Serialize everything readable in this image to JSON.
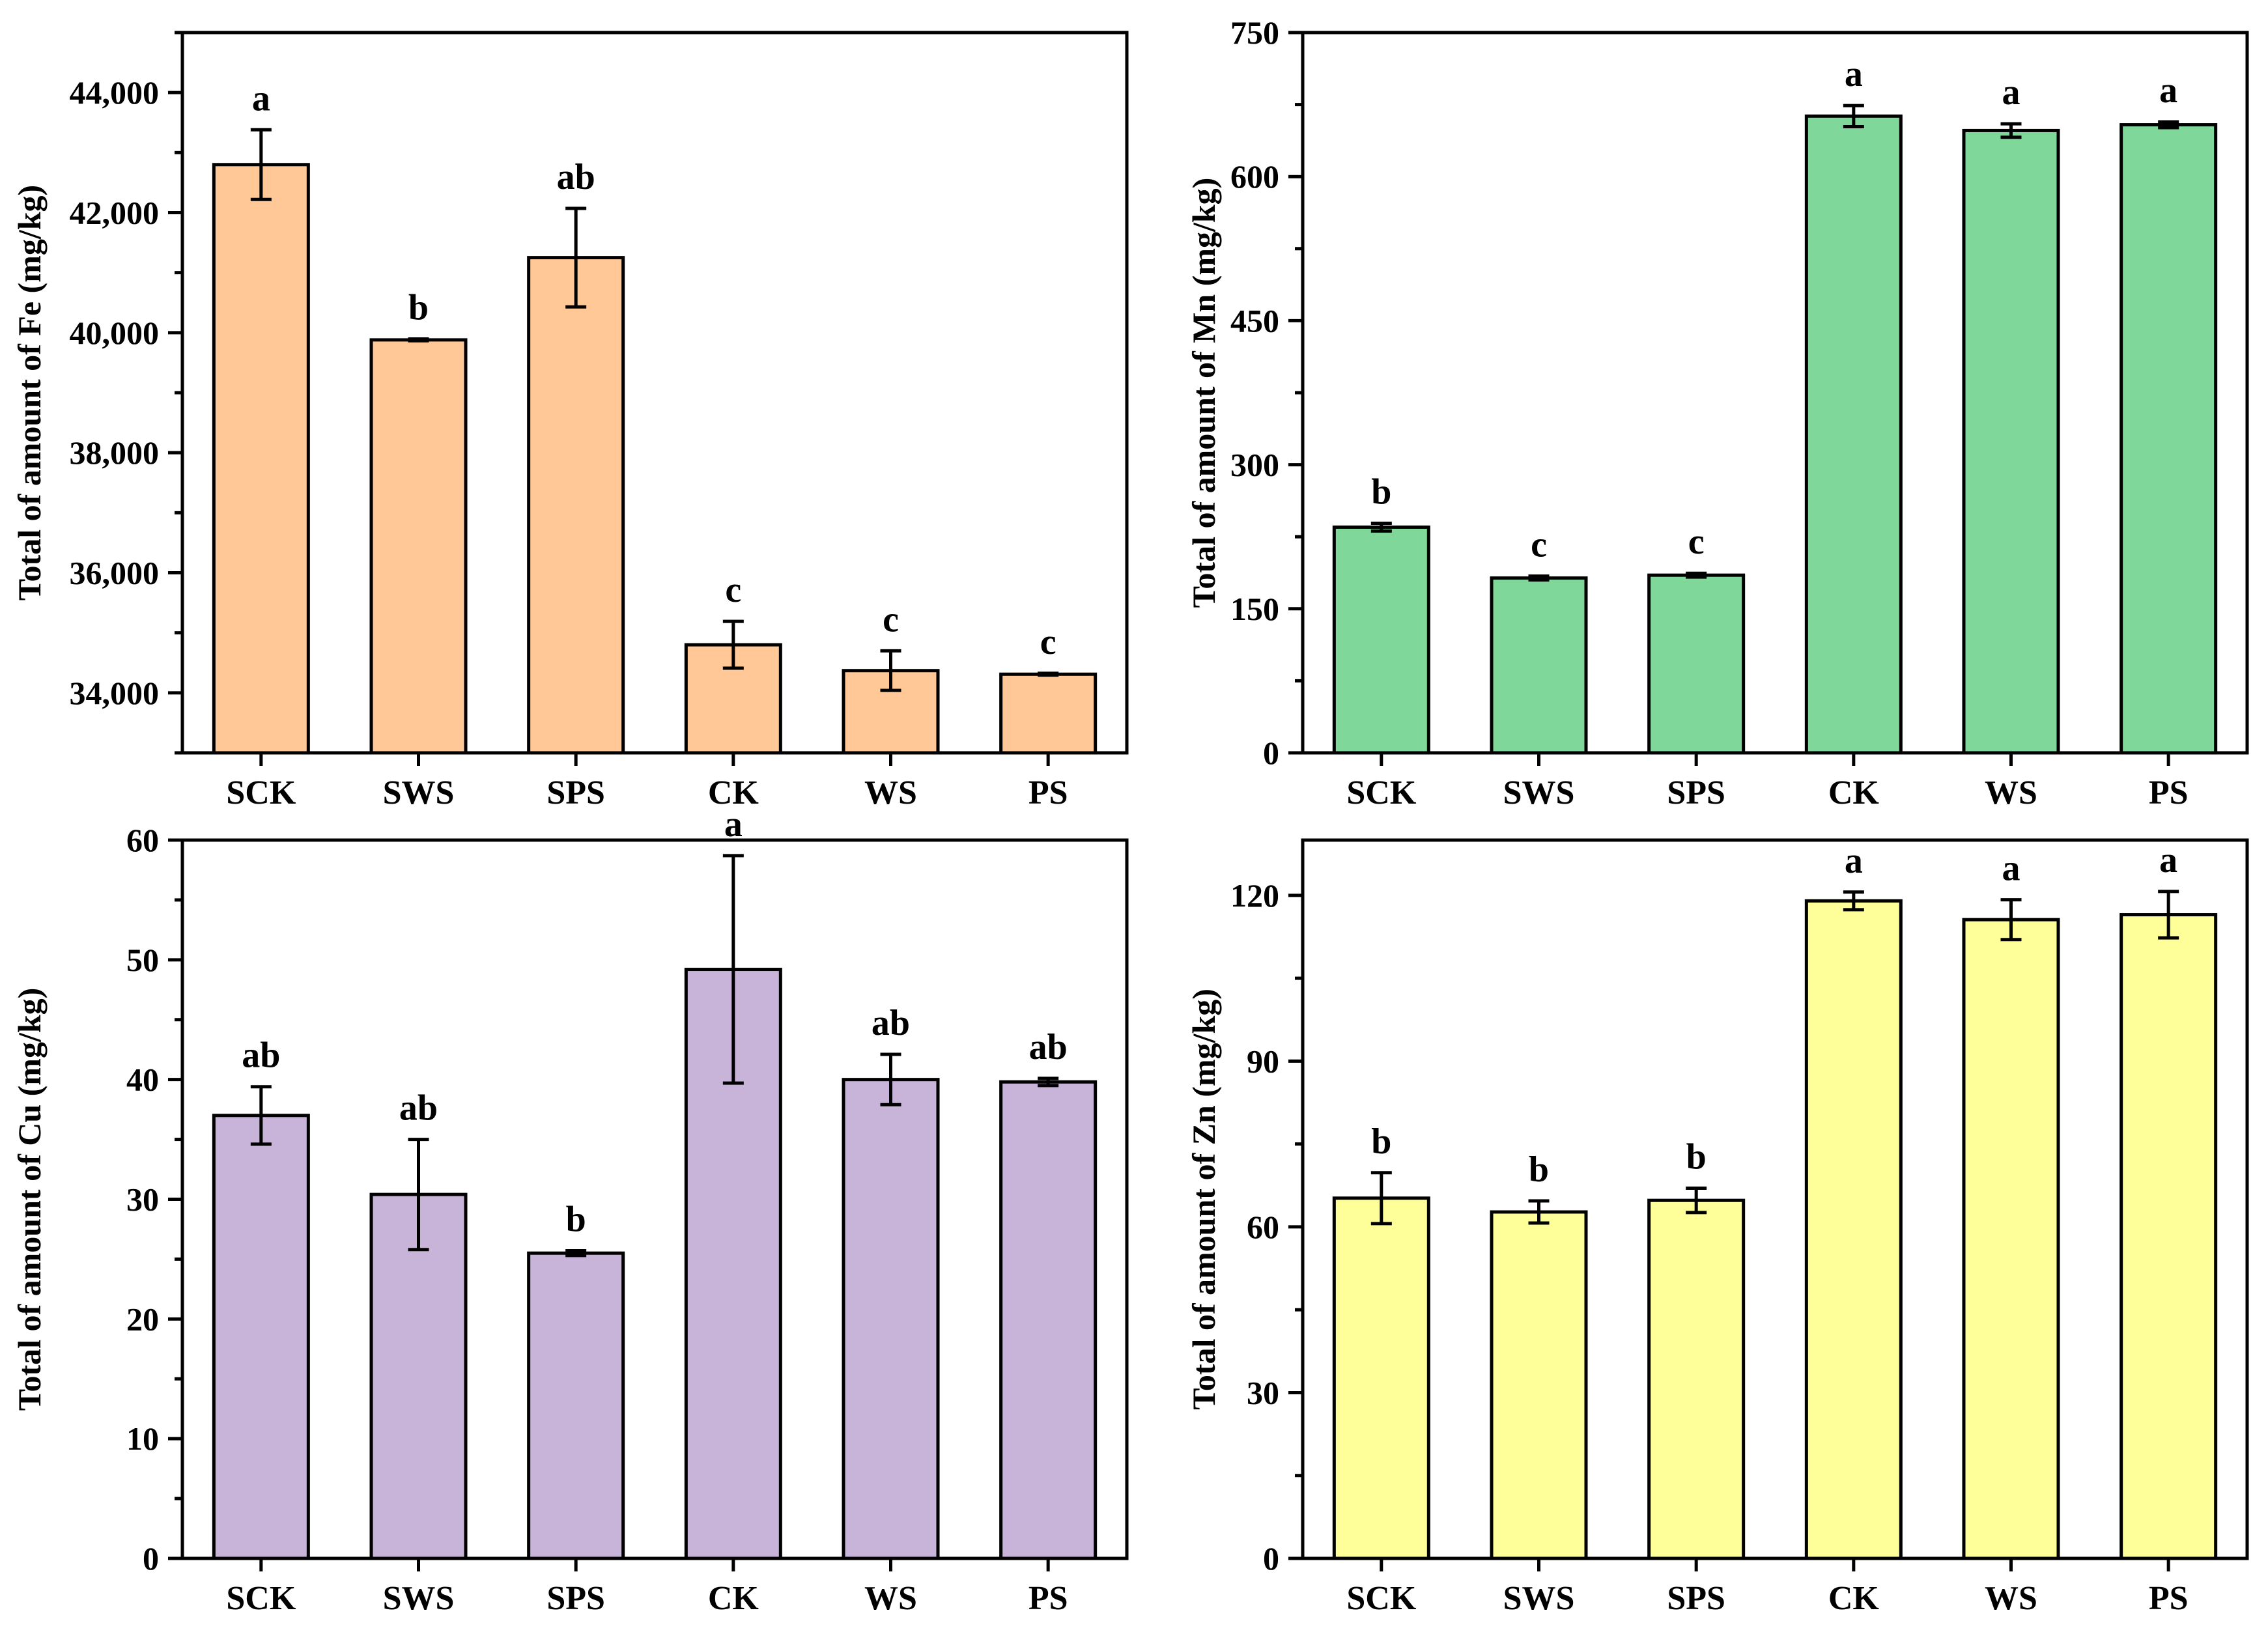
{
  "chart_data": [
    {
      "type": "bar",
      "title": "",
      "xlabel": "",
      "ylabel": "Total of amount of Fe (mg/kg)",
      "categories": [
        "SCK",
        "SWS",
        "SPS",
        "CK",
        "WS",
        "PS"
      ],
      "values": [
        42800,
        39880,
        41250,
        34800,
        34370,
        34310
      ],
      "errors": [
        580,
        15,
        820,
        390,
        330,
        15
      ],
      "significance": [
        "a",
        "b",
        "ab",
        "c",
        "c",
        "c"
      ],
      "ylim": [
        33000,
        45000
      ],
      "yticks": [
        34000,
        36000,
        38000,
        40000,
        42000,
        44000
      ],
      "ytick_labels": [
        "34,000",
        "36,000",
        "38,000",
        "40,000",
        "42,000",
        "44,000"
      ],
      "color": "#FFC896"
    },
    {
      "type": "bar",
      "title": "",
      "xlabel": "",
      "ylabel": "Total of amount of Mn (mg/kg)",
      "categories": [
        "SCK",
        "SWS",
        "SPS",
        "CK",
        "WS",
        "PS"
      ],
      "values": [
        235,
        182,
        185,
        663,
        648,
        654
      ],
      "errors": [
        4,
        2,
        2,
        11,
        7,
        3
      ],
      "significance": [
        "b",
        "c",
        "c",
        "a",
        "a",
        "a"
      ],
      "ylim": [
        0,
        750
      ],
      "yticks": [
        0,
        150,
        300,
        450,
        600,
        750
      ],
      "ytick_labels": [
        "0",
        "150",
        "300",
        "450",
        "600",
        "750"
      ],
      "color": "#7FD89A"
    },
    {
      "type": "bar",
      "title": "",
      "xlabel": "",
      "ylabel": "Total of amount of Cu (mg/kg)",
      "categories": [
        "SCK",
        "SWS",
        "SPS",
        "CK",
        "WS",
        "PS"
      ],
      "values": [
        37.0,
        30.4,
        25.5,
        49.2,
        40.0,
        39.8
      ],
      "errors": [
        2.4,
        4.6,
        0.2,
        9.5,
        2.1,
        0.3
      ],
      "significance": [
        "ab",
        "ab",
        "b",
        "a",
        "ab",
        "ab"
      ],
      "ylim": [
        0,
        60
      ],
      "yticks": [
        0,
        10,
        20,
        30,
        40,
        50,
        60
      ],
      "ytick_labels": [
        "0",
        "10",
        "20",
        "30",
        "40",
        "50",
        "60"
      ],
      "color": "#C8B4D8"
    },
    {
      "type": "bar",
      "title": "",
      "xlabel": "",
      "ylabel": "Total of amount of Zn (mg/kg)",
      "categories": [
        "SCK",
        "SWS",
        "SPS",
        "CK",
        "WS",
        "PS"
      ],
      "values": [
        65.2,
        62.7,
        64.8,
        119.0,
        115.6,
        116.5
      ],
      "errors": [
        4.6,
        2.0,
        2.2,
        1.6,
        3.6,
        4.2
      ],
      "significance": [
        "b",
        "b",
        "b",
        "a",
        "a",
        "a"
      ],
      "ylim": [
        0,
        130
      ],
      "yticks": [
        0,
        30,
        60,
        90,
        120
      ],
      "ytick_labels": [
        "0",
        "30",
        "60",
        "90",
        "120"
      ],
      "color": "#FFFF99"
    }
  ]
}
